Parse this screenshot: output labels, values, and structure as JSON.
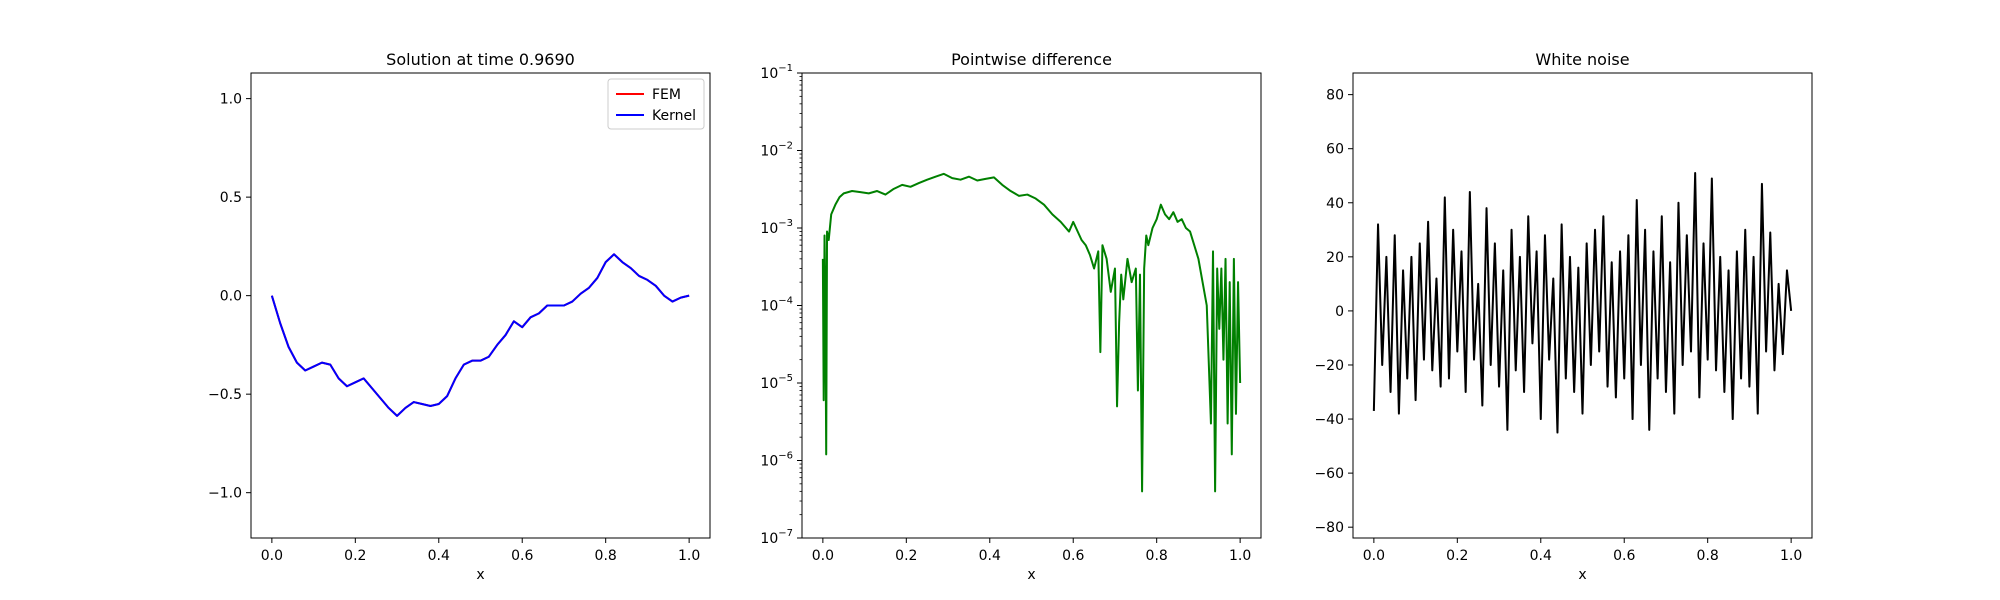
{
  "chart_data": [
    {
      "type": "line",
      "title": "Solution at time 0.9690",
      "xlabel": "x",
      "ylabel": "",
      "xlim": [
        -0.05,
        1.05
      ],
      "ylim": [
        -1.23,
        1.13
      ],
      "xticks": [
        0.0,
        0.2,
        0.4,
        0.6,
        0.8,
        1.0
      ],
      "xtick_labels": [
        "0.0",
        "0.2",
        "0.4",
        "0.6",
        "0.8",
        "1.0"
      ],
      "yticks": [
        -1.0,
        -0.5,
        0.0,
        0.5,
        1.0
      ],
      "ytick_labels": [
        "−1.0",
        "−0.5",
        "0.0",
        "0.5",
        "1.0"
      ],
      "grid": false,
      "legend": {
        "placement": "upper right",
        "entries": [
          "FEM",
          "Kernel"
        ]
      },
      "series": [
        {
          "name": "FEM",
          "color": "#ff0000",
          "x": [
            0.0,
            0.02,
            0.04,
            0.06,
            0.08,
            0.1,
            0.12,
            0.14,
            0.16,
            0.18,
            0.2,
            0.22,
            0.24,
            0.26,
            0.28,
            0.3,
            0.32,
            0.34,
            0.36,
            0.38,
            0.4,
            0.42,
            0.44,
            0.46,
            0.48,
            0.5,
            0.52,
            0.54,
            0.56,
            0.58,
            0.6,
            0.62,
            0.64,
            0.66,
            0.68,
            0.7,
            0.72,
            0.74,
            0.76,
            0.78,
            0.8,
            0.82,
            0.84,
            0.86,
            0.88,
            0.9,
            0.92,
            0.94,
            0.96,
            0.98,
            1.0
          ],
          "y": [
            0.0,
            -0.14,
            -0.26,
            -0.34,
            -0.38,
            -0.36,
            -0.34,
            -0.35,
            -0.42,
            -0.46,
            -0.44,
            -0.42,
            -0.47,
            -0.52,
            -0.57,
            -0.61,
            -0.57,
            -0.54,
            -0.55,
            -0.56,
            -0.55,
            -0.51,
            -0.42,
            -0.35,
            -0.33,
            -0.33,
            -0.31,
            -0.25,
            -0.2,
            -0.13,
            -0.16,
            -0.11,
            -0.09,
            -0.05,
            -0.05,
            -0.05,
            -0.03,
            0.01,
            0.04,
            0.09,
            0.17,
            0.21,
            0.17,
            0.14,
            0.1,
            0.08,
            0.05,
            0.0,
            -0.03,
            -0.01,
            0.0
          ]
        },
        {
          "name": "Kernel",
          "color": "#0000ff",
          "x": [
            0.0,
            0.02,
            0.04,
            0.06,
            0.08,
            0.1,
            0.12,
            0.14,
            0.16,
            0.18,
            0.2,
            0.22,
            0.24,
            0.26,
            0.28,
            0.3,
            0.32,
            0.34,
            0.36,
            0.38,
            0.4,
            0.42,
            0.44,
            0.46,
            0.48,
            0.5,
            0.52,
            0.54,
            0.56,
            0.58,
            0.6,
            0.62,
            0.64,
            0.66,
            0.68,
            0.7,
            0.72,
            0.74,
            0.76,
            0.78,
            0.8,
            0.82,
            0.84,
            0.86,
            0.88,
            0.9,
            0.92,
            0.94,
            0.96,
            0.98,
            1.0
          ],
          "y": [
            0.0,
            -0.14,
            -0.26,
            -0.34,
            -0.38,
            -0.36,
            -0.34,
            -0.35,
            -0.42,
            -0.46,
            -0.44,
            -0.42,
            -0.47,
            -0.52,
            -0.57,
            -0.61,
            -0.57,
            -0.54,
            -0.55,
            -0.56,
            -0.55,
            -0.51,
            -0.42,
            -0.35,
            -0.33,
            -0.33,
            -0.31,
            -0.25,
            -0.2,
            -0.13,
            -0.16,
            -0.11,
            -0.09,
            -0.05,
            -0.05,
            -0.05,
            -0.03,
            0.01,
            0.04,
            0.09,
            0.17,
            0.21,
            0.17,
            0.14,
            0.1,
            0.08,
            0.05,
            0.0,
            -0.03,
            -0.01,
            0.0
          ]
        }
      ]
    },
    {
      "type": "line",
      "title": "Pointwise difference",
      "xlabel": "x",
      "ylabel": "",
      "yscale": "log",
      "xlim": [
        -0.05,
        1.05
      ],
      "ylim": [
        1e-07,
        0.1
      ],
      "xticks": [
        0.0,
        0.2,
        0.4,
        0.6,
        0.8,
        1.0
      ],
      "xtick_labels": [
        "0.0",
        "0.2",
        "0.4",
        "0.6",
        "0.8",
        "1.0"
      ],
      "yticks": [
        1e-07,
        1e-06,
        1e-05,
        0.0001,
        0.001,
        0.01,
        0.1
      ],
      "ytick_labels": [
        [
          "10",
          "−7"
        ],
        [
          "10",
          "−6"
        ],
        [
          "10",
          "−5"
        ],
        [
          "10",
          "−4"
        ],
        [
          "10",
          "−3"
        ],
        [
          "10",
          "−2"
        ],
        [
          "10",
          "−1"
        ]
      ],
      "grid": false,
      "series": [
        {
          "color": "#008000",
          "x": [
            0.0,
            0.002,
            0.004,
            0.006,
            0.008,
            0.01,
            0.014,
            0.02,
            0.03,
            0.04,
            0.05,
            0.07,
            0.09,
            0.11,
            0.13,
            0.15,
            0.17,
            0.19,
            0.21,
            0.23,
            0.25,
            0.27,
            0.29,
            0.31,
            0.33,
            0.35,
            0.37,
            0.39,
            0.41,
            0.43,
            0.45,
            0.47,
            0.49,
            0.51,
            0.53,
            0.55,
            0.57,
            0.59,
            0.6,
            0.62,
            0.63,
            0.64,
            0.65,
            0.66,
            0.665,
            0.67,
            0.68,
            0.69,
            0.7,
            0.705,
            0.71,
            0.715,
            0.72,
            0.73,
            0.74,
            0.75,
            0.755,
            0.76,
            0.765,
            0.77,
            0.775,
            0.78,
            0.79,
            0.8,
            0.81,
            0.82,
            0.83,
            0.84,
            0.85,
            0.86,
            0.87,
            0.88,
            0.89,
            0.9,
            0.91,
            0.92,
            0.93,
            0.935,
            0.94,
            0.945,
            0.95,
            0.955,
            0.96,
            0.965,
            0.97,
            0.975,
            0.98,
            0.985,
            0.99,
            0.995,
            1.0
          ],
          "y": [
            0.0004,
            6e-06,
            0.0008,
            0.0001,
            1.2e-06,
            0.0009,
            0.0007,
            0.0015,
            0.002,
            0.0025,
            0.0028,
            0.003,
            0.0029,
            0.0028,
            0.003,
            0.0027,
            0.0032,
            0.0036,
            0.0034,
            0.0038,
            0.0042,
            0.0046,
            0.005,
            0.0044,
            0.0042,
            0.0046,
            0.0041,
            0.0043,
            0.0045,
            0.0036,
            0.003,
            0.0026,
            0.0027,
            0.0024,
            0.002,
            0.0015,
            0.0012,
            0.0009,
            0.0012,
            0.0007,
            0.0006,
            0.00045,
            0.0003,
            0.0005,
            2.5e-05,
            0.0006,
            0.0004,
            0.00015,
            0.0003,
            5e-06,
            6e-05,
            0.00025,
            0.00012,
            0.0004,
            0.0002,
            0.0003,
            8e-06,
            0.00025,
            4e-07,
            0.0003,
            0.0008,
            0.0006,
            0.001,
            0.0013,
            0.002,
            0.0015,
            0.0013,
            0.0016,
            0.0012,
            0.0013,
            0.001,
            0.0009,
            0.0006,
            0.0004,
            0.0002,
            0.0001,
            3e-06,
            0.0005,
            4e-07,
            0.0003,
            5e-05,
            0.0003,
            2e-05,
            0.0004,
            3e-06,
            0.0002,
            1.2e-06,
            0.0004,
            4e-06,
            0.0002,
            1e-05
          ]
        }
      ]
    },
    {
      "type": "line",
      "title": "White noise",
      "xlabel": "x",
      "ylabel": "",
      "xlim": [
        -0.05,
        1.05
      ],
      "ylim": [
        -84,
        88
      ],
      "xticks": [
        0.0,
        0.2,
        0.4,
        0.6,
        0.8,
        1.0
      ],
      "xtick_labels": [
        "0.0",
        "0.2",
        "0.4",
        "0.6",
        "0.8",
        "1.0"
      ],
      "yticks": [
        -80,
        -60,
        -40,
        -20,
        0,
        20,
        40,
        60,
        80
      ],
      "ytick_labels": [
        "−80",
        "−60",
        "−40",
        "−20",
        "0",
        "20",
        "40",
        "60",
        "80"
      ],
      "grid": false,
      "series": [
        {
          "color": "#000000",
          "x": [
            0.0,
            0.01,
            0.02,
            0.03,
            0.04,
            0.05,
            0.06,
            0.07,
            0.08,
            0.09,
            0.1,
            0.11,
            0.12,
            0.13,
            0.14,
            0.15,
            0.16,
            0.17,
            0.18,
            0.19,
            0.2,
            0.21,
            0.22,
            0.23,
            0.24,
            0.25,
            0.26,
            0.27,
            0.28,
            0.29,
            0.3,
            0.31,
            0.32,
            0.33,
            0.34,
            0.35,
            0.36,
            0.37,
            0.38,
            0.39,
            0.4,
            0.41,
            0.42,
            0.43,
            0.44,
            0.45,
            0.46,
            0.47,
            0.48,
            0.49,
            0.5,
            0.51,
            0.52,
            0.53,
            0.54,
            0.55,
            0.56,
            0.57,
            0.58,
            0.59,
            0.6,
            0.61,
            0.62,
            0.63,
            0.64,
            0.65,
            0.66,
            0.67,
            0.68,
            0.69,
            0.7,
            0.71,
            0.72,
            0.73,
            0.74,
            0.75,
            0.76,
            0.77,
            0.78,
            0.79,
            0.8,
            0.81,
            0.82,
            0.83,
            0.84,
            0.85,
            0.86,
            0.87,
            0.88,
            0.89,
            0.9,
            0.91,
            0.92,
            0.93,
            0.94,
            0.95,
            0.96,
            0.97,
            0.98,
            0.99,
            1.0
          ],
          "y": [
            -37,
            32,
            -20,
            20,
            -30,
            28,
            -38,
            15,
            -25,
            20,
            -33,
            25,
            -18,
            33,
            -22,
            12,
            -28,
            42,
            -25,
            30,
            -15,
            22,
            -30,
            44,
            -18,
            10,
            -35,
            38,
            -20,
            25,
            -28,
            15,
            -44,
            30,
            -22,
            20,
            -30,
            35,
            -12,
            22,
            -40,
            28,
            -18,
            12,
            -45,
            32,
            -25,
            20,
            -30,
            16,
            -38,
            25,
            -20,
            30,
            -15,
            35,
            -28,
            18,
            -32,
            22,
            -25,
            28,
            -40,
            41,
            -20,
            30,
            -44,
            22,
            -25,
            35,
            -30,
            18,
            -38,
            40,
            -20,
            28,
            -15,
            51,
            -32,
            25,
            -18,
            49,
            -22,
            20,
            -30,
            15,
            -40,
            22,
            -25,
            30,
            -28,
            20,
            -38,
            47,
            -15,
            29,
            -22,
            10,
            -16,
            15,
            0
          ]
        }
      ]
    }
  ]
}
